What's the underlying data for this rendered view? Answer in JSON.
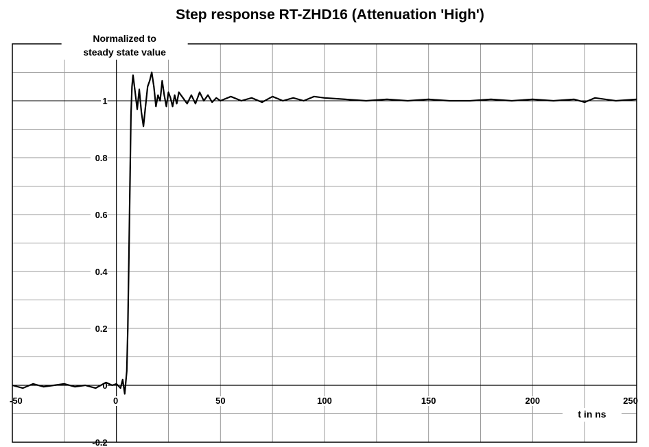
{
  "chart_data": {
    "type": "line",
    "title": "Step response RT-ZHD16 (Attenuation  'High')",
    "ylabel_lines": [
      "Normalized to",
      "steady state value"
    ],
    "xlabel": "t in ns",
    "xlim": [
      -50,
      250
    ],
    "ylim": [
      -0.2,
      1.2
    ],
    "x_ticks": [
      -50,
      0,
      50,
      100,
      150,
      200,
      250
    ],
    "x_tick_labels": [
      "-50",
      "0",
      "50",
      "100",
      "150",
      "200",
      "250"
    ],
    "y_ticks": [
      -0.2,
      0,
      0.2,
      0.4,
      0.6,
      0.8,
      1
    ],
    "y_tick_labels": [
      "-0.2",
      "0",
      "0.2",
      "0.4",
      "0.6",
      "0.8",
      "1"
    ],
    "grid": true,
    "series": [
      {
        "x": [
          -50,
          -45,
          -40,
          -35,
          -30,
          -25,
          -20,
          -15,
          -10,
          -5,
          -2,
          0,
          2,
          3,
          4,
          5,
          5.5,
          6,
          6.5,
          7,
          7.5,
          8,
          9,
          10,
          11,
          12,
          13,
          14,
          15,
          16,
          17,
          18,
          19,
          20,
          21,
          22,
          23,
          24,
          25,
          26,
          27,
          28,
          29,
          30,
          32,
          34,
          36,
          38,
          40,
          42,
          44,
          46,
          48,
          50,
          55,
          60,
          65,
          70,
          75,
          80,
          85,
          90,
          95,
          100,
          110,
          120,
          130,
          140,
          150,
          160,
          170,
          180,
          190,
          200,
          210,
          220,
          225,
          230,
          240,
          250
        ],
        "y": [
          0.0,
          -0.01,
          0.005,
          -0.005,
          0.0,
          0.005,
          -0.005,
          0.0,
          -0.01,
          0.01,
          0.0,
          0.005,
          -0.01,
          0.02,
          -0.03,
          0.05,
          0.2,
          0.45,
          0.7,
          0.95,
          1.05,
          1.09,
          1.03,
          0.97,
          1.04,
          0.96,
          0.91,
          0.98,
          1.05,
          1.07,
          1.1,
          1.05,
          0.98,
          1.02,
          1.0,
          1.07,
          1.02,
          0.98,
          1.03,
          1.01,
          0.98,
          1.02,
          0.99,
          1.03,
          1.01,
          0.99,
          1.02,
          0.99,
          1.03,
          1.0,
          1.02,
          0.995,
          1.01,
          1.0,
          1.015,
          1.0,
          1.01,
          0.995,
          1.015,
          1.0,
          1.01,
          1.0,
          1.015,
          1.01,
          1.005,
          1.0,
          1.005,
          1.0,
          1.005,
          1.0,
          1.0,
          1.005,
          1.0,
          1.005,
          1.0,
          1.005,
          0.995,
          1.01,
          1.0,
          1.005
        ]
      }
    ]
  }
}
